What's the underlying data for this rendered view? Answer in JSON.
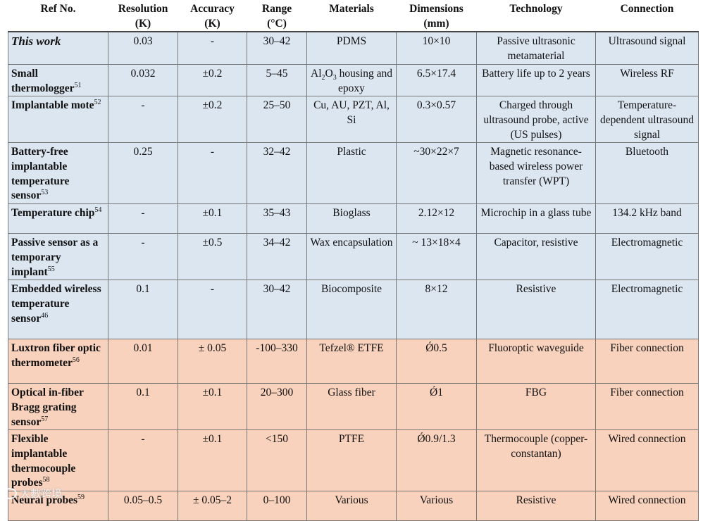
{
  "headers": {
    "ref": "Ref No.",
    "resolution": [
      "Resolution",
      "(K)"
    ],
    "accuracy": [
      "Accuracy",
      "(K)"
    ],
    "range": [
      "Range",
      "(°C)"
    ],
    "materials": "Materials",
    "dimensions": [
      "Dimensions",
      "(mm)"
    ],
    "technology": "Technology",
    "connection": "Connection"
  },
  "rows": [
    {
      "group": "blue",
      "ref": "This work",
      "ref_sup": "",
      "resolution": "0.03",
      "accuracy": "-",
      "range": "30–42",
      "materials": "PDMS",
      "dimensions": "10×10",
      "technology": "Passive ultrasonic metamaterial",
      "connection": "Ultrasound signal"
    },
    {
      "group": "blue",
      "ref": "Small thermologger",
      "ref_sup": "51",
      "resolution": "0.032",
      "accuracy": "±0.2",
      "range": "5–45",
      "materials": "",
      "dimensions": "6.5×17.4",
      "technology": "Battery life up to 2 years",
      "connection": "Wireless RF"
    },
    {
      "group": "blue",
      "ref": "Implantable mote",
      "ref_sup": "52",
      "resolution": "-",
      "accuracy": "±0.2",
      "range": "25–50",
      "materials": "Cu, AU, PZT, Al, Si",
      "dimensions": "0.3×0.57",
      "technology": "Charged through ultrasound probe, active (US pulses)",
      "connection": "Temperature-dependent ultrasound signal"
    },
    {
      "group": "blue",
      "ref": "Battery-free implantable temperature sensor",
      "ref_sup": "53",
      "resolution": "0.25",
      "accuracy": "-",
      "range": "32–42",
      "materials": "Plastic",
      "dimensions": "~30×22×7",
      "technology": "Magnetic resonance-based wireless power transfer (WPT)",
      "connection": "Bluetooth"
    },
    {
      "group": "blue",
      "ref": "Temperature chip",
      "ref_sup": "54",
      "resolution": "-",
      "accuracy": "±0.1",
      "range": "35–43",
      "materials": "Bioglass",
      "dimensions": "2.12×12",
      "technology": "Microchip in a glass tube",
      "connection": "134.2 kHz band"
    },
    {
      "group": "blue",
      "ref": "Passive sensor as a temporary implant",
      "ref_sup": "55",
      "resolution": "-",
      "accuracy": "±0.5",
      "range": "34–42",
      "materials": "Wax encapsulation",
      "dimensions": "~ 13×18×4",
      "technology": "Capacitor, resistive",
      "connection": "Electromagnetic"
    },
    {
      "group": "blue",
      "ref": "Embedded wireless temperature sensor",
      "ref_sup": "46",
      "resolution": "0.1",
      "accuracy": "-",
      "range": "30–42",
      "materials": "Biocomposite",
      "dimensions": "8×12",
      "technology": "Resistive",
      "connection": "Electromagnetic"
    },
    {
      "group": "orange",
      "ref": "Luxtron fiber optic thermometer",
      "ref_sup": "56",
      "resolution": "0.01",
      "accuracy": "± 0.05",
      "range": "-100–330",
      "materials": "Tefzel® ETFE",
      "dimensions": "Ǿ0.5",
      "technology": "Fluoroptic waveguide",
      "connection": "Fiber connection"
    },
    {
      "group": "orange",
      "ref": "Optical in-fiber Bragg grating sensor",
      "ref_sup": "57",
      "resolution": "0.1",
      "accuracy": "±0.1",
      "range": "20–300",
      "materials": "Glass fiber",
      "dimensions": "Ǿ1",
      "technology": "FBG",
      "connection": "Fiber connection"
    },
    {
      "group": "orange",
      "ref": "Flexible implantable thermocouple probes",
      "ref_sup": "58",
      "resolution": "-",
      "accuracy": "±0.1",
      "range": "<150",
      "materials": "PTFE",
      "dimensions": "Ǿ0.9/1.3",
      "technology": "Thermocouple (copper-constantan)",
      "connection": "Wired connection"
    },
    {
      "group": "orange",
      "ref": "Neural probes",
      "ref_sup": "59",
      "resolution": "0.05–0.5",
      "accuracy": "± 0.05–2",
      "range": "0–100",
      "materials": "Various",
      "dimensions": "Various",
      "technology": "Resistive",
      "connection": "Wired connection"
    }
  ],
  "special": {
    "al2o3_prefix": "Al",
    "al2o3_sub1": "2",
    "al2o3_mid": "O",
    "al2o3_sub2": "3",
    "al2o3_rest": " housing and epoxy"
  },
  "watermark": "大數跨境",
  "colors": {
    "blue_rows": "#dce6f1",
    "orange_rows": "#f8d2bd"
  }
}
